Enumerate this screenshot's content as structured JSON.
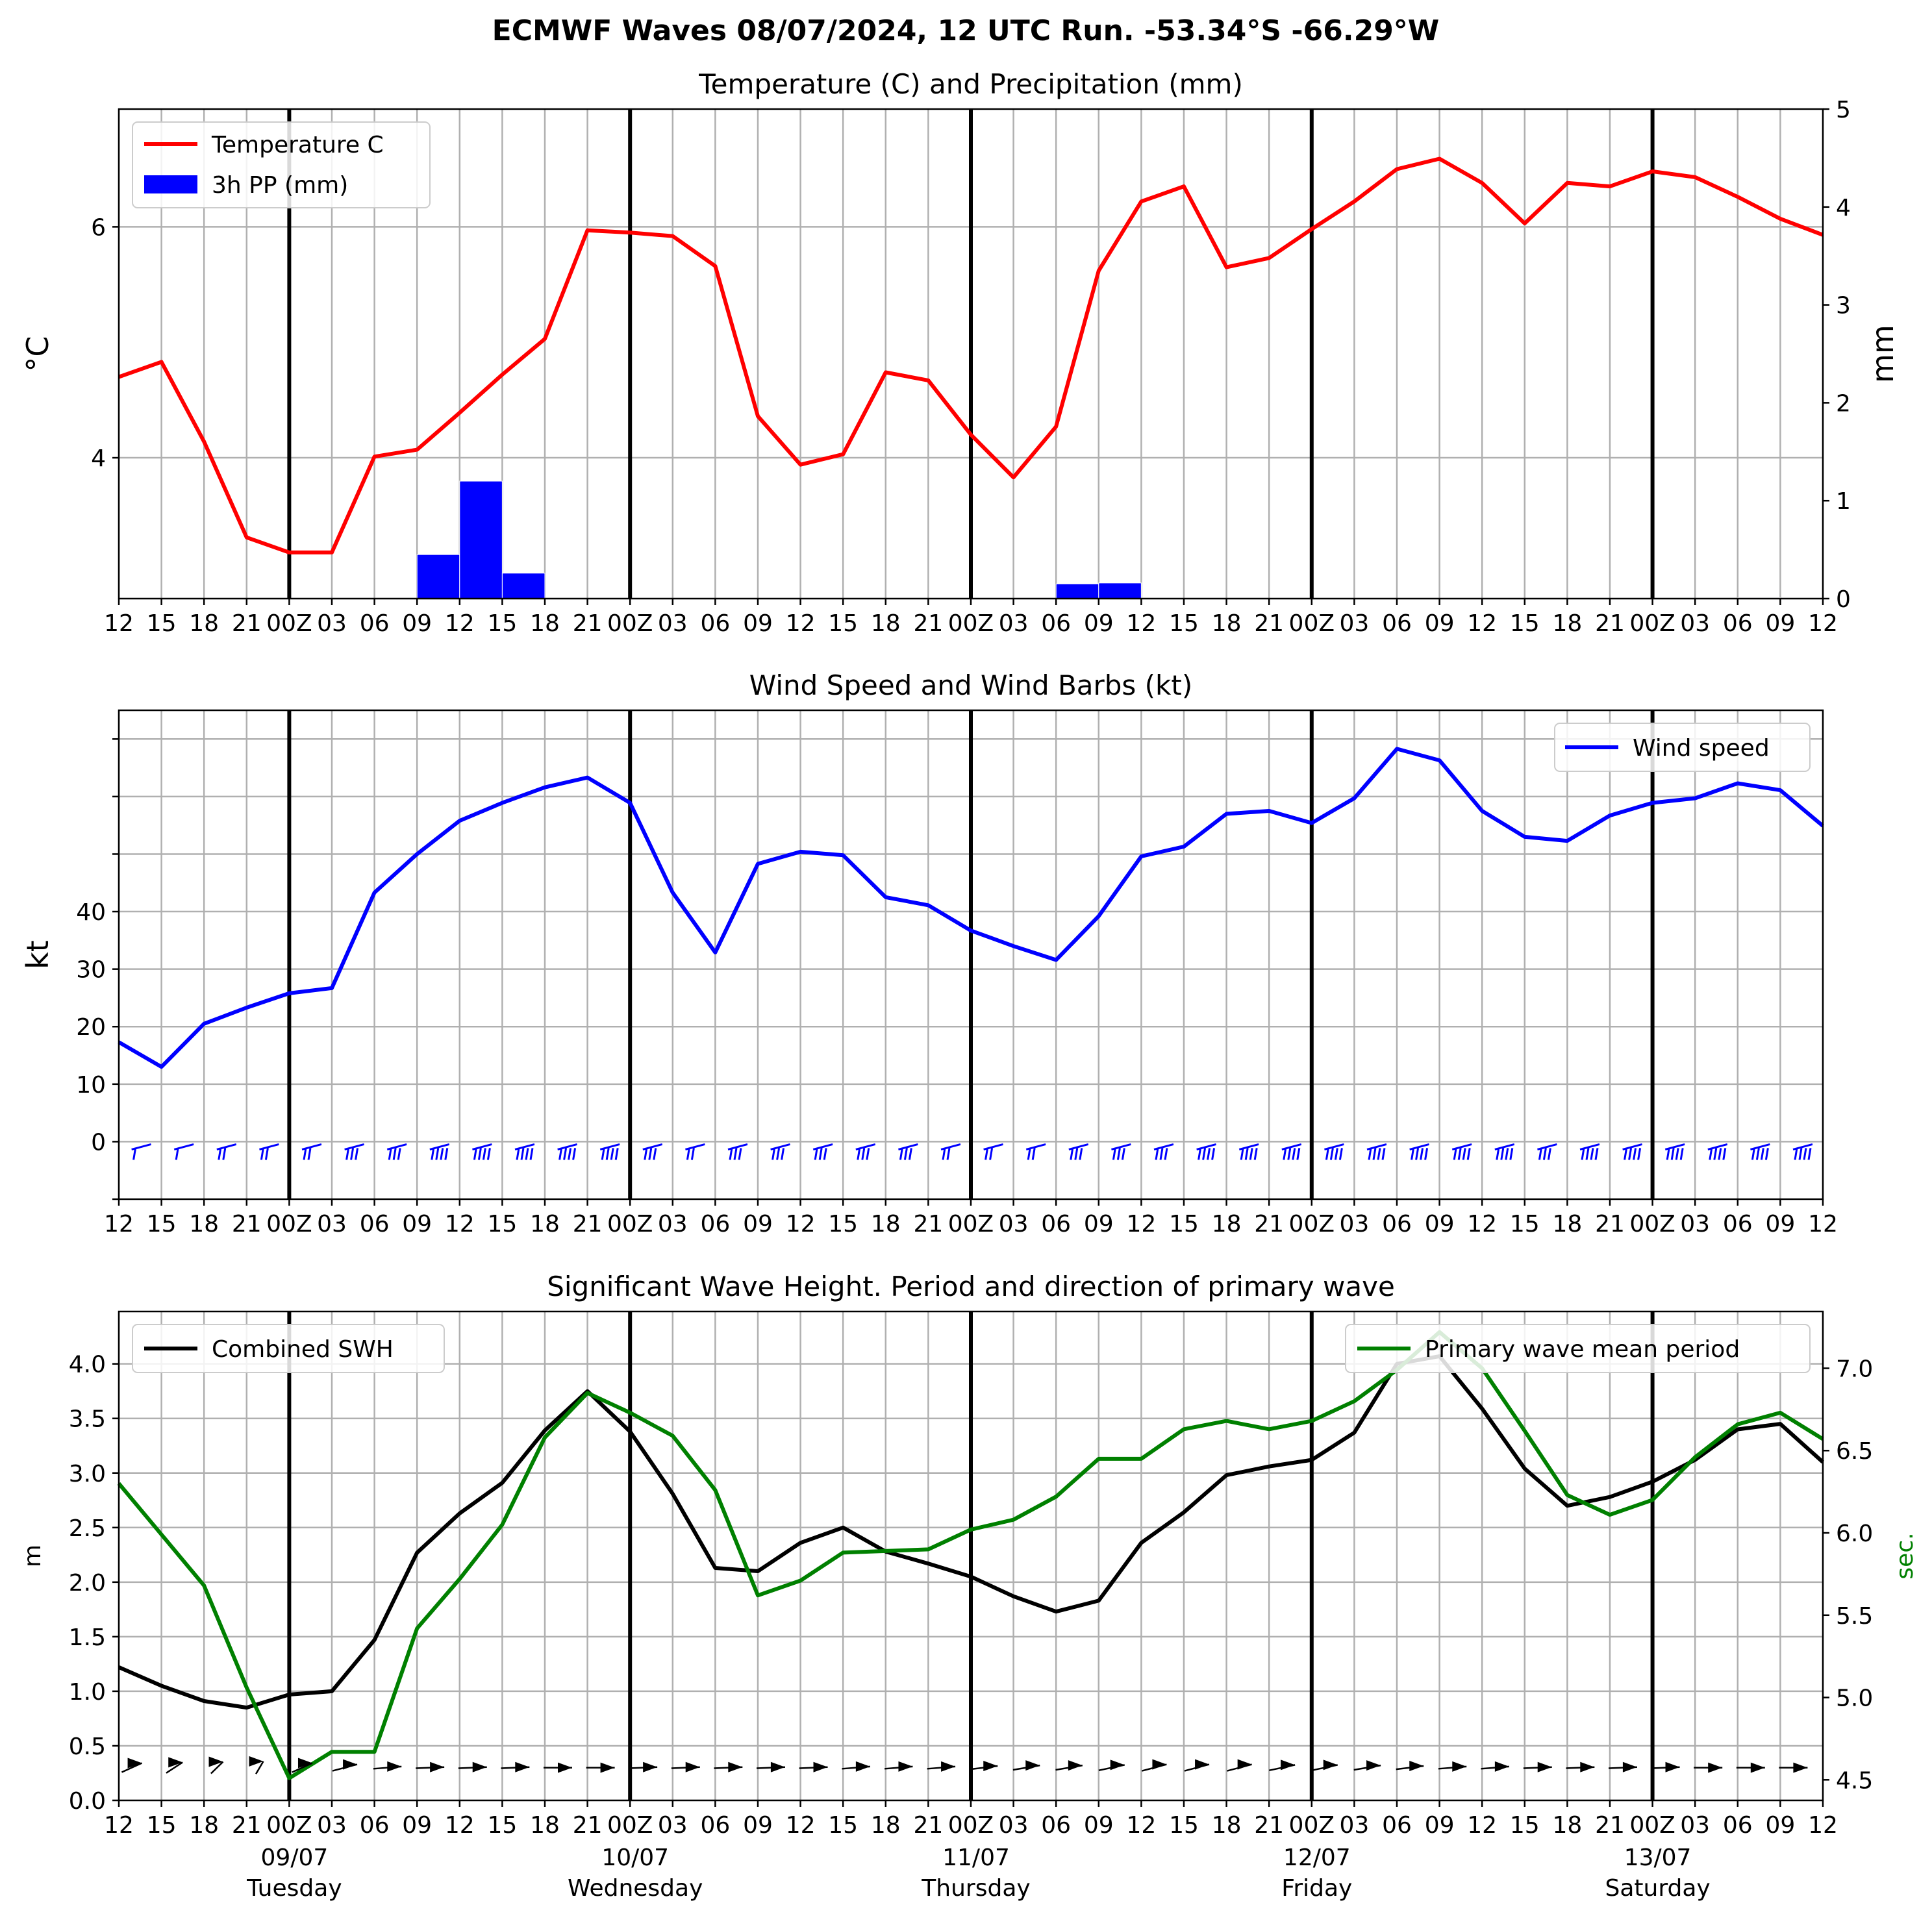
{
  "suptitle": "ECMWF Waves 08/07/2024, 12 UTC Run. -53.34°S -66.29°W",
  "x_tick_labels": [
    "12",
    "15",
    "18",
    "21",
    "00Z",
    "03",
    "06",
    "09",
    "12",
    "15",
    "18",
    "21",
    "00Z",
    "03",
    "06",
    "09",
    "12",
    "15",
    "18",
    "21",
    "00Z",
    "03",
    "06",
    "09",
    "12",
    "15",
    "18",
    "21",
    "00Z",
    "03",
    "06",
    "09",
    "12",
    "15",
    "18",
    "21",
    "00Z",
    "03",
    "06",
    "09",
    "12"
  ],
  "day_labels": [
    {
      "date": "09/07",
      "day": "Tuesday"
    },
    {
      "date": "10/07",
      "day": "Wednesday"
    },
    {
      "date": "11/07",
      "day": "Thursday"
    },
    {
      "date": "12/07",
      "day": "Friday"
    },
    {
      "date": "13/07",
      "day": "Saturday"
    }
  ],
  "colors": {
    "temperature": "#ff0000",
    "precip": "#0000ff",
    "wind": "#0000ff",
    "swh": "#000000",
    "period": "#008000",
    "grid": "#b0b0b0"
  },
  "chart_data": [
    {
      "type": "line",
      "title": "Temperature (C) and Precipitation (mm)",
      "ylabel": "$^\\circ$C",
      "ylabel_right": "mm",
      "x": [
        "12",
        "15",
        "18",
        "21",
        "00Z",
        "03",
        "06",
        "09",
        "12",
        "15",
        "18",
        "21",
        "00Z",
        "03",
        "06",
        "09",
        "12",
        "15",
        "18",
        "21",
        "00Z",
        "03",
        "06",
        "09",
        "12",
        "15",
        "18",
        "21",
        "00Z",
        "03",
        "06",
        "09",
        "12",
        "15",
        "18",
        "21",
        "00Z",
        "03",
        "06",
        "09",
        "12"
      ],
      "ylim": [
        2.78,
        7.02
      ],
      "ylim_right": [
        0,
        5
      ],
      "yticks": [
        4,
        6
      ],
      "yticks_right": [
        0,
        1,
        2,
        3,
        4,
        5
      ],
      "legend": {
        "placement": "top-left",
        "entries": [
          "Temperature C",
          "3h PP (mm)"
        ]
      },
      "series": [
        {
          "name": "Temperature C",
          "axis": "left",
          "values": [
            4.7,
            4.83,
            4.14,
            3.31,
            3.18,
            3.18,
            4.01,
            4.07,
            4.39,
            4.72,
            5.03,
            5.97,
            5.95,
            5.92,
            5.66,
            4.36,
            3.94,
            4.03,
            4.74,
            4.67,
            4.2,
            3.83,
            4.27,
            5.62,
            6.22,
            6.35,
            5.65,
            5.73,
            5.98,
            6.22,
            6.5,
            6.59,
            6.38,
            6.03,
            6.38,
            6.35,
            6.48,
            6.43,
            6.26,
            6.07,
            5.93
          ]
        },
        {
          "name": "3h PP (mm)",
          "axis": "right",
          "kind": "bar",
          "values": [
            0,
            0,
            0,
            0,
            0,
            0,
            0,
            0.45,
            1.2,
            0.26,
            0,
            0,
            0,
            0,
            0,
            0,
            0,
            0,
            0,
            0,
            0,
            0,
            0.15,
            0.16,
            0,
            0,
            0,
            0,
            0,
            0,
            0,
            0,
            0,
            0,
            0,
            0,
            0,
            0,
            0.01,
            0,
            0
          ]
        }
      ],
      "grid": true
    },
    {
      "type": "line",
      "title": "Wind Speed and Wind Barbs (kt)",
      "ylabel": "kt",
      "x": [
        "12",
        "15",
        "18",
        "21",
        "00Z",
        "03",
        "06",
        "09",
        "12",
        "15",
        "18",
        "21",
        "00Z",
        "03",
        "06",
        "09",
        "12",
        "15",
        "18",
        "21",
        "00Z",
        "03",
        "06",
        "09",
        "12",
        "15",
        "18",
        "21",
        "00Z",
        "03",
        "06",
        "09",
        "12",
        "15",
        "18",
        "21",
        "00Z",
        "03",
        "06",
        "09",
        "12"
      ],
      "ylim": [
        -10,
        75
      ],
      "yticks": [
        -10,
        0,
        10,
        20,
        30,
        40,
        50,
        60,
        70
      ],
      "ytick_labels": [
        "",
        "0",
        "10",
        "20",
        "30",
        "40",
        "",
        "",
        ""
      ],
      "legend": {
        "placement": "top-right",
        "entries": [
          "Wind speed"
        ]
      },
      "series": [
        {
          "name": "Wind speed",
          "values": [
            17.3,
            13,
            20.5,
            23.3,
            25.8,
            26.7,
            43.3,
            50,
            55.8,
            58.9,
            61.6,
            63.3,
            58.9,
            43.3,
            32.9,
            48.3,
            50.4,
            49.8,
            42.5,
            41.1,
            36.7,
            34,
            31.6,
            39.2,
            49.6,
            51.3,
            57,
            57.5,
            55.4,
            59.7,
            68.3,
            66.3,
            57.5,
            53,
            52.3,
            56.7,
            58.9,
            59.7,
            62.3,
            61.1,
            54.9
          ]
        }
      ],
      "barb_direction_deg": [
        5,
        355,
        345,
        335,
        325,
        320,
        315,
        310,
        305,
        300,
        295,
        290,
        285,
        280,
        275,
        270,
        265,
        260,
        255,
        250,
        245,
        240,
        235,
        232,
        230,
        225,
        220,
        215,
        210,
        205,
        200,
        198,
        196,
        194,
        192,
        190,
        188,
        186,
        184,
        182,
        180
      ],
      "grid": true
    },
    {
      "type": "line",
      "title": "Significant Wave Height. Period and direction of primary wave",
      "ylabel": "m",
      "ylabel_right": "sec.",
      "x": [
        "12",
        "15",
        "18",
        "21",
        "00Z",
        "03",
        "06",
        "09",
        "12",
        "15",
        "18",
        "21",
        "00Z",
        "03",
        "06",
        "09",
        "12",
        "15",
        "18",
        "21",
        "00Z",
        "03",
        "06",
        "09",
        "12",
        "15",
        "18",
        "21",
        "00Z",
        "03",
        "06",
        "09",
        "12",
        "15",
        "18",
        "21",
        "00Z",
        "03",
        "06",
        "09",
        "12"
      ],
      "ylim": [
        0,
        4.48
      ],
      "ylim_right": [
        4.375,
        7.345
      ],
      "yticks": [
        0,
        0.5,
        1,
        1.5,
        2,
        2.5,
        3,
        3.5,
        4
      ],
      "ytick_labels": [
        "0.0",
        "0.5",
        "1.0",
        "1.5",
        "2.0",
        "2.5",
        "3.0",
        "3.5",
        "4.0"
      ],
      "yticks_right": [
        4.5,
        5,
        5.5,
        6,
        6.5,
        7
      ],
      "ytick_labels_right": [
        "4.5",
        "5.0",
        "5.5",
        "6.0",
        "6.5",
        "7.0"
      ],
      "legend": [
        {
          "placement": "top-left",
          "entries": [
            "Combined SWH"
          ]
        },
        {
          "placement": "top-right",
          "entries": [
            "Primary wave mean period"
          ]
        }
      ],
      "series": [
        {
          "name": "Combined SWH",
          "axis": "left",
          "values": [
            1.22,
            1.05,
            0.91,
            0.85,
            0.97,
            1,
            1.47,
            2.27,
            2.63,
            2.91,
            3.39,
            3.75,
            3.38,
            2.81,
            2.13,
            2.1,
            2.36,
            2.5,
            2.28,
            2.17,
            2.05,
            1.87,
            1.73,
            1.83,
            2.36,
            2.64,
            2.98,
            3.06,
            3.12,
            3.37,
            4,
            4.07,
            3.59,
            3.04,
            2.7,
            2.78,
            2.92,
            3.12,
            3.4,
            3.45,
            3.1
          ]
        },
        {
          "name": "Primary wave mean period",
          "axis": "right",
          "values": [
            6.3,
            5.99,
            5.68,
            5.06,
            4.51,
            4.67,
            4.67,
            5.42,
            5.72,
            6.05,
            6.58,
            6.85,
            6.73,
            6.59,
            6.26,
            5.62,
            5.71,
            5.88,
            5.89,
            5.9,
            6.02,
            6.08,
            6.22,
            6.45,
            6.45,
            6.63,
            6.68,
            6.63,
            6.68,
            6.8,
            6.99,
            7.22,
            7,
            6.62,
            6.23,
            6.11,
            6.2,
            6.46,
            6.66,
            6.73,
            6.57
          ]
        }
      ],
      "wave_direction_deg": [
        45,
        35,
        25,
        15,
        45,
        60,
        80,
        85,
        85,
        85,
        90,
        90,
        85,
        85,
        85,
        85,
        85,
        80,
        80,
        80,
        75,
        70,
        70,
        65,
        60,
        60,
        60,
        65,
        65,
        70,
        75,
        80,
        80,
        85,
        85,
        85,
        85,
        90,
        90,
        90,
        90
      ],
      "grid": true
    }
  ]
}
